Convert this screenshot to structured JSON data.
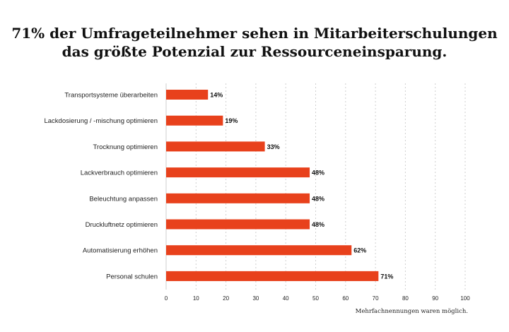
{
  "title_lines": [
    "71% der Umfrageteilnehmer sehen in Mitarbeiterschulungen",
    "das größte Potenzial zur Ressourceneinsparung."
  ],
  "footnote": "Mehrfachnennungen waren möglich.",
  "colors": {
    "bar": "#e8411c",
    "grid": "#cfcfcf",
    "text": "#222222"
  },
  "chart_data": {
    "type": "bar",
    "orientation": "horizontal",
    "categories": [
      "Transportsysteme überarbeiten",
      "Lackdosierung / -mischung optimieren",
      "Trocknung optimieren",
      "Lackverbrauch optimieren",
      "Beleuchtung anpassen",
      "Druckluftnetz optimieren",
      "Automatisierung erhöhen",
      "Personal schulen"
    ],
    "values": [
      14,
      19,
      33,
      48,
      48,
      48,
      62,
      71
    ],
    "value_labels": [
      "14%",
      "19%",
      "33%",
      "48%",
      "48%",
      "48%",
      "62%",
      "71%"
    ],
    "xlim": [
      0,
      100
    ],
    "xticks": [
      0,
      10,
      20,
      30,
      40,
      50,
      60,
      70,
      80,
      90,
      100
    ],
    "xlabel": "",
    "ylabel": "",
    "grid": true
  }
}
